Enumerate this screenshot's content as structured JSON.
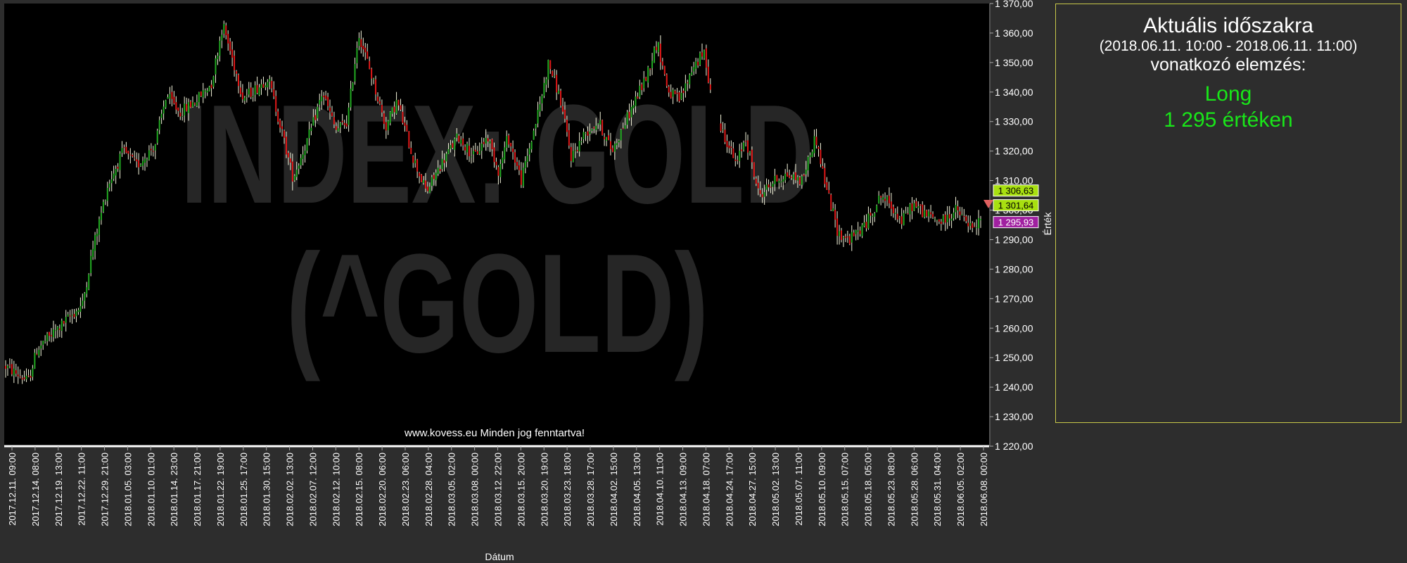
{
  "chart_data": {
    "type": "candlestick",
    "watermark": [
      "INDEX: GOLD",
      "(^GOLD)"
    ],
    "copyright": "www.kovess.eu Minden jog fenntartva!",
    "xlabel": "Dátum",
    "ylabel": "Érték",
    "ylim": [
      1220,
      1370
    ],
    "y_ticks": [
      "1 370,00",
      "1 360,00",
      "1 350,00",
      "1 340,00",
      "1 330,00",
      "1 320,00",
      "1 310,00",
      "1 300,00",
      "1 290,00",
      "1 280,00",
      "1 270,00",
      "1 260,00",
      "1 250,00",
      "1 240,00",
      "1 230,00",
      "1 220,00"
    ],
    "x_ticks": [
      "2017.12.11. 09:00",
      "2017.12.14. 08:00",
      "2017.12.19. 13:00",
      "2017.12.22. 11:00",
      "2017.12.29. 21:00",
      "2018.01.05. 03:00",
      "2018.01.10. 01:00",
      "2018.01.14. 23:00",
      "2018.01.17. 21:00",
      "2018.01.22. 19:00",
      "2018.01.25. 17:00",
      "2018.01.30. 15:00",
      "2018.02.02. 13:00",
      "2018.02.07. 12:00",
      "2018.02.12. 10:00",
      "2018.02.15. 08:00",
      "2018.02.20. 06:00",
      "2018.02.23. 06:00",
      "2018.02.28. 04:00",
      "2018.03.05. 02:00",
      "2018.03.08. 00:00",
      "2018.03.12. 22:00",
      "2018.03.15. 20:00",
      "2018.03.20. 19:00",
      "2018.03.23. 18:00",
      "2018.03.28. 17:00",
      "2018.04.02. 15:00",
      "2018.04.05. 13:00",
      "2018.04.10. 11:00",
      "2018.04.13. 09:00",
      "2018.04.18. 07:00",
      "2018.04.24. 17:00",
      "2018.04.27. 15:00",
      "2018.05.02. 13:00",
      "2018.05.07. 11:00",
      "2018.05.10. 09:00",
      "2018.05.15. 07:00",
      "2018.05.18. 05:00",
      "2018.05.23. 08:00",
      "2018.05.28. 06:00",
      "2018.05.31. 04:00",
      "2018.06.05. 02:00",
      "2018.06.08. 00:00"
    ],
    "price_path": [
      [
        0,
        1247
      ],
      [
        10,
        1242
      ],
      [
        14,
        1253
      ],
      [
        26,
        1262
      ],
      [
        34,
        1268
      ],
      [
        38,
        1285
      ],
      [
        45,
        1308
      ],
      [
        52,
        1320
      ],
      [
        58,
        1315
      ],
      [
        66,
        1322
      ],
      [
        71,
        1339
      ],
      [
        77,
        1333
      ],
      [
        84,
        1337
      ],
      [
        91,
        1343
      ],
      [
        96,
        1363
      ],
      [
        105,
        1338
      ],
      [
        112,
        1342
      ],
      [
        116,
        1345
      ],
      [
        121,
        1330
      ],
      [
        127,
        1311
      ],
      [
        135,
        1327
      ],
      [
        140,
        1340
      ],
      [
        146,
        1327
      ],
      [
        151,
        1330
      ],
      [
        156,
        1360
      ],
      [
        162,
        1345
      ],
      [
        168,
        1328
      ],
      [
        173,
        1337
      ],
      [
        180,
        1318
      ],
      [
        186,
        1306
      ],
      [
        192,
        1315
      ],
      [
        200,
        1325
      ],
      [
        207,
        1318
      ],
      [
        213,
        1325
      ],
      [
        218,
        1313
      ],
      [
        222,
        1325
      ],
      [
        228,
        1310
      ],
      [
        236,
        1335
      ],
      [
        240,
        1350
      ],
      [
        245,
        1338
      ],
      [
        250,
        1318
      ],
      [
        256,
        1326
      ],
      [
        262,
        1330
      ],
      [
        268,
        1320
      ],
      [
        277,
        1335
      ],
      [
        283,
        1345
      ],
      [
        288,
        1357
      ],
      [
        293,
        1340
      ],
      [
        298,
        1337
      ],
      [
        304,
        1349
      ],
      [
        309,
        1353
      ],
      [
        313,
        1333
      ],
      [
        318,
        1325
      ],
      [
        323,
        1315
      ],
      [
        327,
        1325
      ],
      [
        333,
        1305
      ],
      [
        340,
        1310
      ],
      [
        345,
        1312
      ],
      [
        352,
        1310
      ],
      [
        358,
        1325
      ],
      [
        362,
        1310
      ],
      [
        368,
        1292
      ],
      [
        373,
        1290
      ],
      [
        380,
        1295
      ],
      [
        387,
        1305
      ],
      [
        393,
        1300
      ],
      [
        396,
        1296
      ],
      [
        401,
        1302
      ],
      [
        408,
        1298
      ],
      [
        414,
        1296
      ],
      [
        420,
        1300
      ],
      [
        428,
        1293
      ],
      [
        431,
        1297
      ]
    ],
    "price_labels": [
      {
        "value": 1306.63,
        "label": "1 306,63",
        "color": "#a8e010"
      },
      {
        "value": 1301.64,
        "label": "1 301,64",
        "color": "#a8e010"
      },
      {
        "value": 1295.93,
        "label": "1 295,93",
        "color": "#a020a0"
      }
    ],
    "colors": {
      "up": "#22aa22",
      "down": "#e01818",
      "wick": "#f5f5dc",
      "plot_bg": "#000000",
      "watermark": "#262626"
    },
    "grid": false
  },
  "panel": {
    "title": "Aktuális időszakra",
    "range": "(2018.06.11. 10:00 - 2018.06.11. 11:00)",
    "subtitle": "vonatkozó elemzés:",
    "signal": "Long",
    "value": "1 295  értéken"
  }
}
